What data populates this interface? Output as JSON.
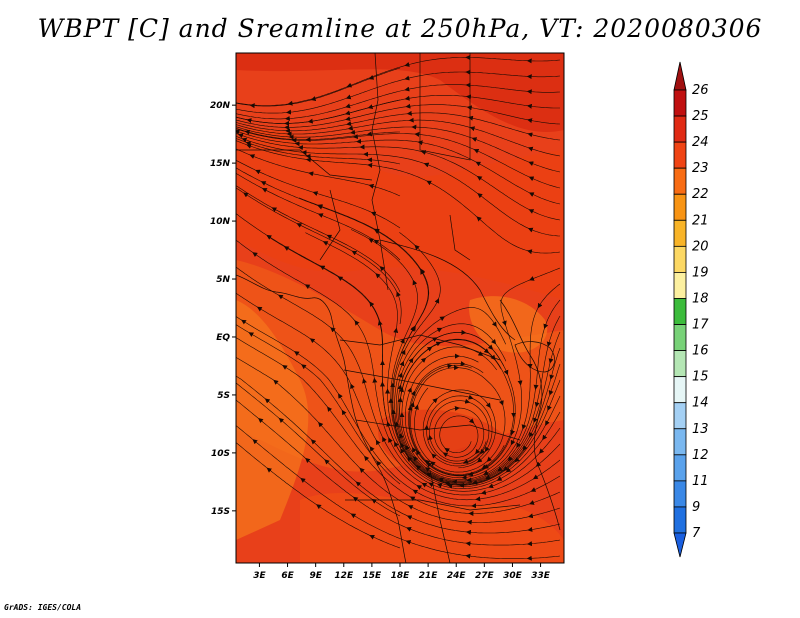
{
  "title": "WBPT [C] and Sreamline at 250hPa, VT: 2020080306",
  "footer": "GrADS: IGES/COLA",
  "map": {
    "lat_labels": [
      "20N",
      "15N",
      "10N",
      "5N",
      "EQ",
      "5S",
      "10S",
      "15S"
    ],
    "lon_labels": [
      "3E",
      "6E",
      "9E",
      "12E",
      "15E",
      "18E",
      "21E",
      "24E",
      "27E",
      "30E",
      "33E"
    ],
    "lat_values": [
      20,
      15,
      10,
      5,
      0,
      -5,
      -10,
      -15
    ],
    "lon_values": [
      3,
      6,
      9,
      12,
      15,
      18,
      21,
      24,
      27,
      30,
      33
    ],
    "lat_range": [
      -19.5,
      24.5
    ],
    "lon_range": [
      0.5,
      35.5
    ],
    "vortex_center": {
      "lon": 24,
      "lat": -9
    },
    "field_colors": [
      "#e13a14",
      "#f04d14",
      "#f05a18",
      "#f6741c",
      "#ec4012",
      "#d82a10"
    ]
  },
  "colorbar": {
    "labels": [
      "26",
      "25",
      "24",
      "23",
      "22",
      "21",
      "20",
      "19",
      "18",
      "17",
      "16",
      "15",
      "14",
      "13",
      "12",
      "11",
      "9",
      "7"
    ],
    "colors": [
      "#c01010",
      "#e02a14",
      "#f04414",
      "#f86c14",
      "#f89414",
      "#f8b428",
      "#fcd864",
      "#fcf0a0",
      "#3cbc3c",
      "#78d278",
      "#b4e6b4",
      "#e6f6f6",
      "#a4d0f4",
      "#7ab8f0",
      "#5aa2ec",
      "#3a88e6",
      "#2070e0"
    ],
    "top_arrow_color": "#a01010",
    "bottom_arrow_color": "#1a5fe0"
  }
}
